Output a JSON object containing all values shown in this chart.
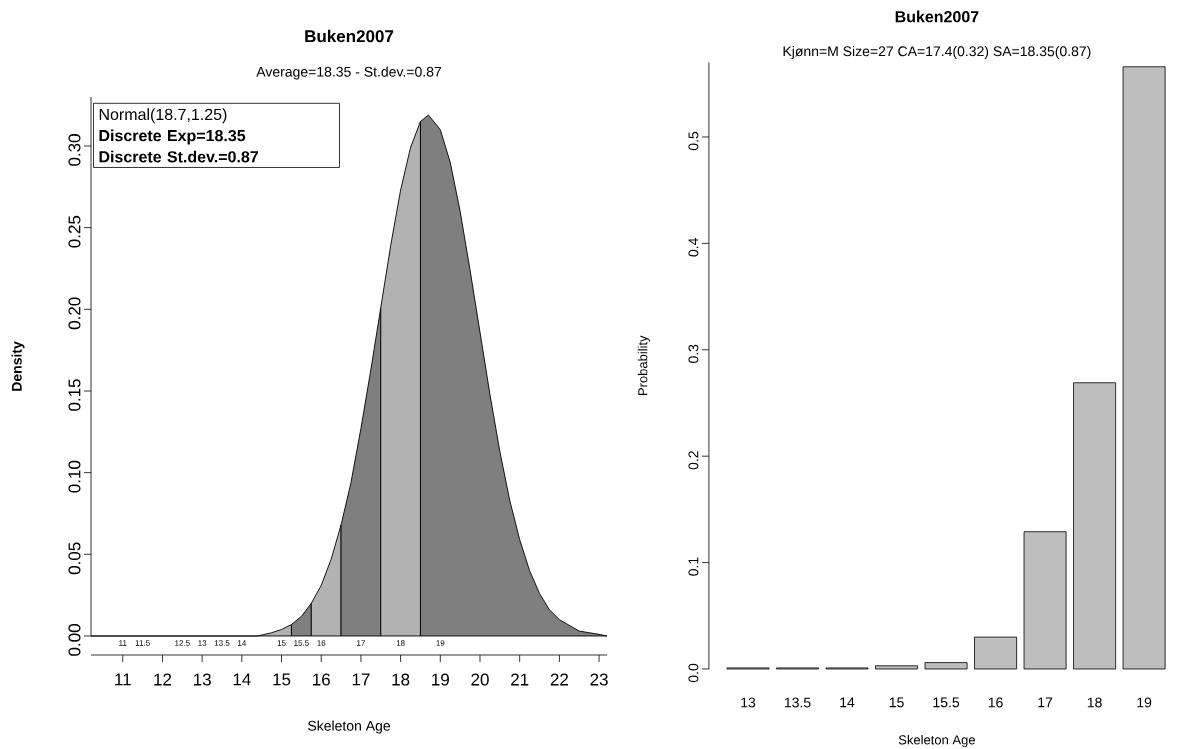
{
  "chart_data": [
    {
      "type": "area",
      "title": "Buken2007",
      "subtitle": "Average=18.35 - St.dev.=0.87",
      "xlabel": "Skeleton Age",
      "ylabel": "Density",
      "xlim": [
        10.2,
        23.2
      ],
      "xticks": [
        11,
        12,
        13,
        14,
        15,
        16,
        17,
        18,
        19,
        20,
        21,
        22,
        23
      ],
      "ylim": [
        0,
        0.33
      ],
      "yticks": [
        {
          "value": 0,
          "label": "0.00"
        },
        0.05,
        {
          "value": 0.1,
          "label": "0.10"
        },
        0.15,
        {
          "value": 0.2,
          "label": "0.20"
        },
        0.25,
        {
          "value": 0.3,
          "label": "0.30"
        }
      ],
      "series": [
        {
          "color": "#b2b2b2",
          "x": [
            10.2,
            14.4,
            14.75,
            15,
            15.25
          ],
          "values": [
            0,
            0,
            0.002,
            0.004,
            0.007
          ]
        },
        {
          "color": "#7f7f7f",
          "x": [
            15.25,
            15.5,
            15.75
          ],
          "values": [
            0.007,
            0.012,
            0.02
          ]
        },
        {
          "color": "#b2b2b2",
          "x": [
            15.75,
            16,
            16.25,
            16.5
          ],
          "values": [
            0.02,
            0.031,
            0.047,
            0.068
          ]
        },
        {
          "color": "#7f7f7f",
          "x": [
            16.5,
            16.75,
            17,
            17.25,
            17.5
          ],
          "values": [
            0.068,
            0.094,
            0.127,
            0.163,
            0.201
          ]
        },
        {
          "color": "#b2b2b2",
          "x": [
            17.5,
            17.75,
            18,
            18.25,
            18.5
          ],
          "values": [
            0.201,
            0.239,
            0.273,
            0.299,
            0.315
          ]
        },
        {
          "color": "#7f7f7f",
          "x": [
            18.5,
            18.7,
            19,
            19.25,
            19.5,
            19.75,
            20,
            20.25,
            20.5,
            20.75,
            21,
            21.25,
            21.5,
            21.75,
            22,
            22.5,
            23,
            23.2
          ],
          "values": [
            0.315,
            0.319,
            0.31,
            0.29,
            0.26,
            0.224,
            0.186,
            0.148,
            0.113,
            0.083,
            0.059,
            0.04,
            0.026,
            0.016,
            0.01,
            0.003,
            0.001,
            0
          ]
        }
      ],
      "annotations": [
        "Normal(18.7,1.25)",
        "Discrete Exp=18.35",
        "Discrete St.dev.=0.87",
        {
          "text": "11",
          "x": 11,
          "y": 0
        },
        {
          "text": "11.5",
          "x": 11.5,
          "y": 0
        },
        {
          "text": "12.5",
          "x": 12.5,
          "y": 0
        },
        {
          "text": "13",
          "x": 13,
          "y": 0
        },
        {
          "text": "13.5",
          "x": 13.5,
          "y": 0
        },
        {
          "text": "14",
          "x": 14,
          "y": 0
        },
        {
          "text": "15",
          "x": 15,
          "y": 0
        },
        {
          "text": "15.5",
          "x": 15.5,
          "y": 0
        },
        {
          "text": "16",
          "x": 16,
          "y": 0
        },
        {
          "text": "17",
          "x": 17,
          "y": 0
        },
        {
          "text": "18",
          "x": 18,
          "y": 0
        },
        {
          "text": "19",
          "x": 19,
          "y": 0
        }
      ]
    },
    {
      "type": "bar",
      "title": "Buken2007",
      "subtitle": "Kjønn=M Size=27 CA=17.4(0.32) SA=18.35(0.87)",
      "xlabel": "Skeleton Age",
      "ylabel": "Probability",
      "categories": [
        "13",
        "13.5",
        "14",
        "15",
        "15.5",
        "16",
        "17",
        "18",
        "19"
      ],
      "values": [
        0.001,
        0.001,
        0.001,
        0.003,
        0.006,
        0.03,
        0.129,
        0.269,
        0.566
      ],
      "color": "#bebebe",
      "ylim": [
        0,
        0.57
      ],
      "yticks": [
        {
          "value": 0,
          "label": "0.0"
        },
        0.1,
        0.2,
        0.3,
        0.4,
        0.5
      ]
    }
  ]
}
